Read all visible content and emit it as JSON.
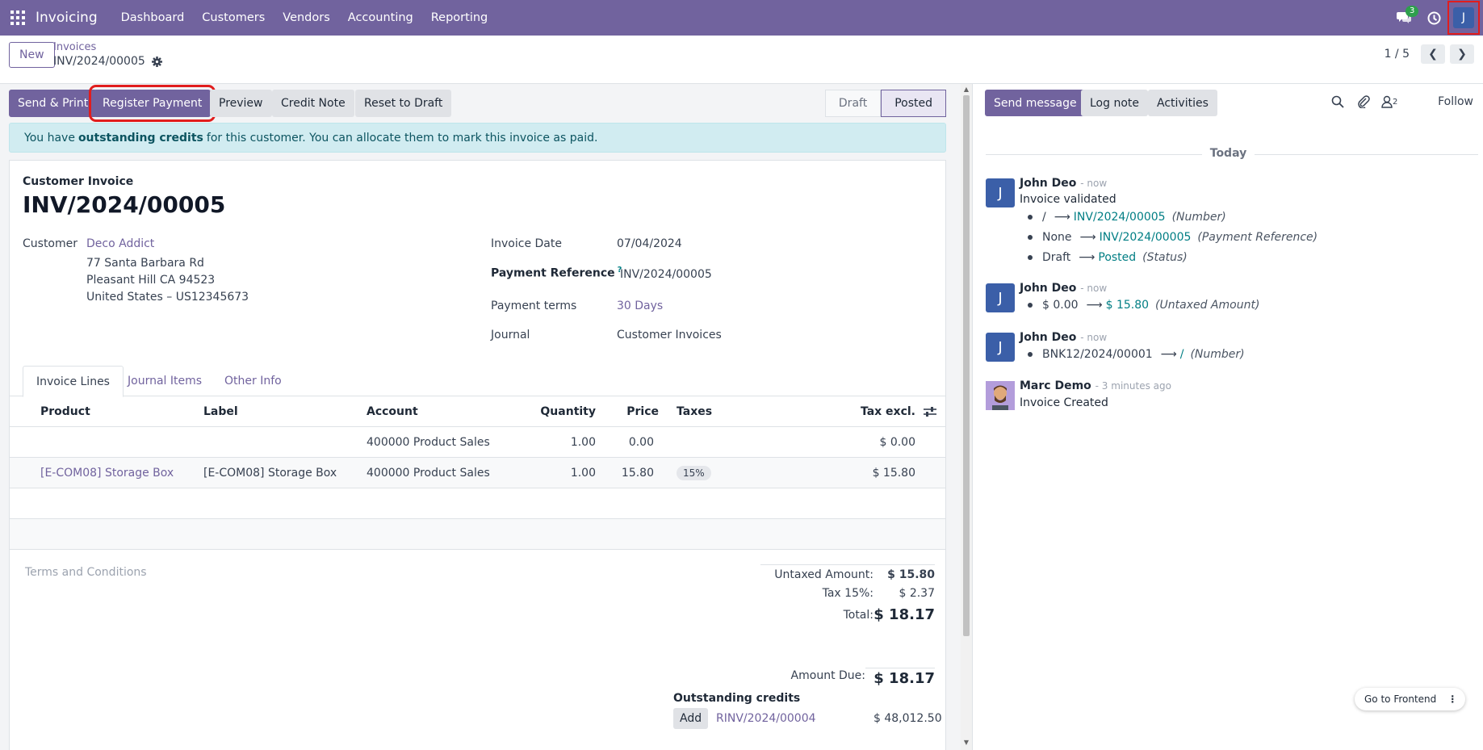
{
  "navbar": {
    "brand": "Invoicing",
    "menu": [
      "Dashboard",
      "Customers",
      "Vendors",
      "Accounting",
      "Reporting"
    ],
    "messages_count": "3",
    "user_initial": "J"
  },
  "control": {
    "new_label": "New",
    "breadcrumb": "Invoices",
    "record": "INV/2024/00005",
    "pager": "1 / 5"
  },
  "statusbar": {
    "buttons": [
      "Send & Print",
      "Register Payment",
      "Preview",
      "Credit Note",
      "Reset to Draft"
    ],
    "steps": [
      "Draft",
      "Posted"
    ],
    "active_step": "Posted"
  },
  "alert": {
    "prefix": "You have",
    "bold": "outstanding credits",
    "suffix": "for this customer. You can allocate them to mark this invoice as paid."
  },
  "invoice": {
    "type": "Customer Invoice",
    "name": "INV/2024/00005",
    "customer_label": "Customer",
    "customer_name": "Deco Addict",
    "address": [
      "77 Santa Barbara Rd",
      "Pleasant Hill CA 94523",
      "United States – US12345673"
    ],
    "invoice_date_label": "Invoice Date",
    "invoice_date": "07/04/2024",
    "payment_ref_label": "Payment Reference",
    "payment_ref_help": "?",
    "payment_ref": "INV/2024/00005",
    "payment_terms_label": "Payment terms",
    "payment_terms": "30 Days",
    "journal_label": "Journal",
    "journal": "Customer Invoices"
  },
  "tabs": [
    "Invoice Lines",
    "Journal Items",
    "Other Info"
  ],
  "lines": {
    "headers": [
      "Product",
      "Label",
      "Account",
      "Quantity",
      "Price",
      "Taxes",
      "Tax excl."
    ],
    "rows": [
      {
        "product": "",
        "label": "",
        "account": "400000 Product Sales",
        "quantity": "1.00",
        "price": "0.00",
        "taxes": "",
        "subtotal": "$ 0.00"
      },
      {
        "product": "[E-COM08] Storage Box",
        "label": "[E-COM08] Storage Box",
        "account": "400000 Product Sales",
        "quantity": "1.00",
        "price": "15.80",
        "taxes": "15%",
        "subtotal": "$ 15.80"
      }
    ]
  },
  "terms_placeholder": "Terms and Conditions",
  "totals": {
    "untaxed_label": "Untaxed Amount:",
    "untaxed": "$ 15.80",
    "tax_label": "Tax 15%:",
    "tax": "$ 2.37",
    "total_label": "Total:",
    "total": "$ 18.17",
    "due_label": "Amount Due:",
    "due": "$ 18.17"
  },
  "outstanding": {
    "title": "Outstanding credits",
    "add_label": "Add",
    "ref": "RINV/2024/00004",
    "amount": "$ 48,012.50"
  },
  "chatter": {
    "buttons": [
      "Send message",
      "Log note",
      "Activities"
    ],
    "followers_count": "2",
    "follow_label": "Follow",
    "today_label": "Today",
    "messages": [
      {
        "initial": "J",
        "author": "John Deo",
        "time": "- now",
        "body": "Invoice validated",
        "changes": [
          {
            "old": "/",
            "new": "INV/2024/00005",
            "field": "(Number)"
          },
          {
            "old": "None",
            "new": "INV/2024/00005",
            "field": "(Payment Reference)"
          },
          {
            "old": "Draft",
            "new": "Posted",
            "field": "(Status)"
          }
        ]
      },
      {
        "initial": "J",
        "author": "John Deo",
        "time": "- now",
        "changes": [
          {
            "old": "$ 0.00",
            "new": "$ 15.80",
            "field": "(Untaxed Amount)"
          }
        ]
      },
      {
        "initial": "J",
        "author": "John Deo",
        "time": "- now",
        "changes": [
          {
            "old": "BNK12/2024/00001",
            "new": "/",
            "field": "(Number)"
          }
        ]
      },
      {
        "author": "Marc Demo",
        "time": "- 3 minutes ago",
        "body": "Invoice Created"
      }
    ]
  },
  "goto_frontend": "Go to Frontend",
  "colors": {
    "brand": "#71639e",
    "link": "#017e84",
    "alert_bg": "#d1ecf1",
    "highlight": "#e11d1d"
  }
}
